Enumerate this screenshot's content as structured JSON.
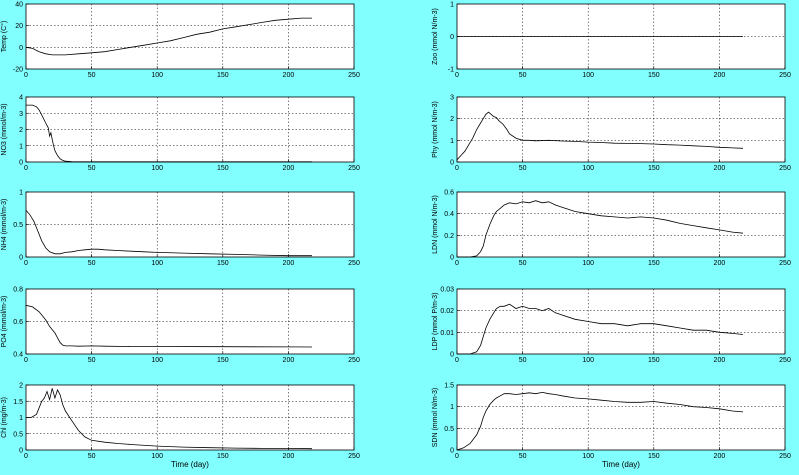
{
  "figure": {
    "background": "#80fffe",
    "axes_background": "#ffffff",
    "line_color": "#000000",
    "grid": "dotted"
  },
  "chart_data": [
    {
      "type": "line",
      "ylabel": "Temp (C°)",
      "xlabel": "",
      "xlim": [
        0,
        250
      ],
      "ylim": [
        -20,
        40
      ],
      "xticks": [
        0,
        50,
        100,
        150,
        200,
        250
      ],
      "yticks": [
        -20,
        0,
        20,
        40
      ],
      "grid": true,
      "series": [
        {
          "x": [
            0,
            5,
            10,
            15,
            20,
            30,
            40,
            50,
            60,
            70,
            80,
            90,
            100,
            110,
            120,
            130,
            140,
            150,
            160,
            170,
            180,
            190,
            200,
            210,
            218
          ],
          "y": [
            0,
            -1,
            -4,
            -6,
            -7,
            -7,
            -6,
            -5,
            -4,
            -2,
            0,
            2,
            4,
            6,
            9,
            12,
            14,
            17,
            19,
            21,
            23,
            25,
            26,
            27,
            27
          ]
        }
      ]
    },
    {
      "type": "line",
      "ylabel": "NO3 (mmol/m-3)",
      "xlabel": "",
      "xlim": [
        0,
        250
      ],
      "ylim": [
        0,
        4
      ],
      "xticks": [
        0,
        50,
        100,
        150,
        200,
        250
      ],
      "yticks": [
        0,
        1,
        2,
        3,
        4
      ],
      "grid": true,
      "series": [
        {
          "x": [
            0,
            5,
            8,
            10,
            12,
            15,
            17,
            18,
            19,
            20,
            21,
            22,
            24,
            26,
            28,
            30,
            35,
            40,
            60,
            100,
            150,
            200,
            218
          ],
          "y": [
            3.5,
            3.5,
            3.4,
            3.2,
            2.9,
            2.4,
            2.1,
            1.6,
            1.8,
            1.4,
            1.0,
            0.7,
            0.4,
            0.2,
            0.1,
            0.05,
            0.02,
            0.01,
            0.01,
            0.01,
            0.01,
            0.01,
            0.01
          ]
        }
      ]
    },
    {
      "type": "line",
      "ylabel": "NH4 (mmol/m-3)",
      "xlabel": "",
      "xlim": [
        0,
        250
      ],
      "ylim": [
        0,
        1
      ],
      "xticks": [
        0,
        50,
        100,
        150,
        200,
        250
      ],
      "yticks": [
        0,
        0.5,
        1
      ],
      "grid": true,
      "series": [
        {
          "x": [
            0,
            3,
            6,
            9,
            12,
            15,
            18,
            22,
            26,
            30,
            35,
            40,
            45,
            50,
            55,
            60,
            70,
            80,
            90,
            100,
            120,
            140,
            160,
            180,
            200,
            218
          ],
          "y": [
            0.72,
            0.65,
            0.55,
            0.4,
            0.25,
            0.14,
            0.08,
            0.05,
            0.05,
            0.07,
            0.08,
            0.1,
            0.11,
            0.12,
            0.12,
            0.11,
            0.1,
            0.09,
            0.08,
            0.07,
            0.06,
            0.05,
            0.04,
            0.03,
            0.02,
            0.02
          ]
        }
      ]
    },
    {
      "type": "line",
      "ylabel": "PO4 (mmol/m-3)",
      "xlabel": "",
      "xlim": [
        0,
        250
      ],
      "ylim": [
        0.4,
        0.8
      ],
      "xticks": [
        0,
        50,
        100,
        150,
        200,
        250
      ],
      "yticks": [
        0.4,
        0.6,
        0.8
      ],
      "grid": true,
      "series": [
        {
          "x": [
            0,
            5,
            10,
            15,
            18,
            20,
            22,
            24,
            26,
            28,
            30,
            35,
            40,
            50,
            60,
            80,
            100,
            150,
            200,
            218
          ],
          "y": [
            0.7,
            0.69,
            0.66,
            0.61,
            0.57,
            0.55,
            0.53,
            0.5,
            0.47,
            0.455,
            0.45,
            0.45,
            0.448,
            0.45,
            0.448,
            0.446,
            0.446,
            0.445,
            0.444,
            0.443
          ]
        }
      ]
    },
    {
      "type": "line",
      "ylabel": "Chl (mg/m-3)",
      "xlabel": "Time (day)",
      "xlim": [
        0,
        250
      ],
      "ylim": [
        0,
        2
      ],
      "xticks": [
        0,
        50,
        100,
        150,
        200,
        250
      ],
      "yticks": [
        0,
        0.5,
        1,
        1.5,
        2
      ],
      "grid": true,
      "series": [
        {
          "x": [
            0,
            4,
            8,
            10,
            12,
            14,
            16,
            18,
            20,
            22,
            24,
            26,
            28,
            30,
            35,
            40,
            45,
            50,
            60,
            70,
            80,
            100,
            120,
            140,
            160,
            180,
            200,
            218
          ],
          "y": [
            1.0,
            1.0,
            1.1,
            1.3,
            1.5,
            1.6,
            1.8,
            1.55,
            1.9,
            1.6,
            1.85,
            1.7,
            1.4,
            1.2,
            0.9,
            0.6,
            0.4,
            0.3,
            0.24,
            0.2,
            0.17,
            0.12,
            0.09,
            0.07,
            0.06,
            0.05,
            0.05,
            0.04
          ]
        }
      ]
    },
    {
      "type": "line",
      "ylabel": "Zoo (mmol N/m-3)",
      "xlabel": "",
      "xlim": [
        0,
        250
      ],
      "ylim": [
        -1,
        1
      ],
      "xticks": [
        0,
        50,
        100,
        150,
        200,
        250
      ],
      "yticks": [
        -1,
        0,
        1
      ],
      "grid": true,
      "series": [
        {
          "x": [
            0,
            218
          ],
          "y": [
            0,
            0
          ]
        }
      ]
    },
    {
      "type": "line",
      "ylabel": "Phy (mmol N/m-3)",
      "xlabel": "",
      "xlim": [
        0,
        250
      ],
      "ylim": [
        0,
        3
      ],
      "xticks": [
        0,
        50,
        100,
        150,
        200,
        250
      ],
      "yticks": [
        0,
        1,
        2,
        3
      ],
      "grid": true,
      "series": [
        {
          "x": [
            0,
            3,
            6,
            9,
            12,
            15,
            18,
            20,
            22,
            24,
            26,
            28,
            30,
            32,
            35,
            38,
            40,
            45,
            50,
            55,
            60,
            70,
            80,
            90,
            100,
            110,
            120,
            130,
            140,
            150,
            160,
            170,
            180,
            190,
            200,
            210,
            218
          ],
          "y": [
            0.1,
            0.3,
            0.5,
            0.8,
            1.1,
            1.5,
            1.8,
            2.0,
            2.2,
            2.3,
            2.2,
            2.1,
            2.05,
            1.9,
            1.75,
            1.5,
            1.3,
            1.1,
            1.0,
            1.0,
            0.98,
            1.0,
            0.97,
            0.95,
            0.92,
            0.9,
            0.87,
            0.86,
            0.85,
            0.83,
            0.8,
            0.78,
            0.75,
            0.72,
            0.68,
            0.65,
            0.63
          ]
        }
      ]
    },
    {
      "type": "line",
      "ylabel": "LDN (mmol N/m-3)",
      "xlabel": "",
      "xlim": [
        0,
        250
      ],
      "ylim": [
        0,
        0.6
      ],
      "xticks": [
        0,
        50,
        100,
        150,
        200,
        250
      ],
      "yticks": [
        0,
        0.2,
        0.4,
        0.6
      ],
      "grid": true,
      "series": [
        {
          "x": [
            0,
            10,
            15,
            18,
            20,
            22,
            25,
            28,
            30,
            33,
            36,
            40,
            45,
            50,
            55,
            60,
            65,
            70,
            75,
            80,
            90,
            100,
            110,
            120,
            130,
            140,
            150,
            160,
            170,
            180,
            190,
            200,
            210,
            218
          ],
          "y": [
            0.0,
            0.0,
            0.01,
            0.05,
            0.1,
            0.2,
            0.3,
            0.38,
            0.42,
            0.45,
            0.48,
            0.5,
            0.49,
            0.51,
            0.5,
            0.52,
            0.5,
            0.51,
            0.48,
            0.46,
            0.42,
            0.4,
            0.38,
            0.37,
            0.36,
            0.37,
            0.36,
            0.34,
            0.31,
            0.29,
            0.27,
            0.25,
            0.23,
            0.22
          ]
        }
      ]
    },
    {
      "type": "line",
      "ylabel": "LDP (mmol P/m-3)",
      "xlabel": "",
      "xlim": [
        0,
        250
      ],
      "ylim": [
        0,
        0.03
      ],
      "xticks": [
        0,
        50,
        100,
        150,
        200,
        250
      ],
      "yticks": [
        0,
        0.01,
        0.02,
        0.03
      ],
      "grid": true,
      "series": [
        {
          "x": [
            0,
            10,
            15,
            18,
            20,
            22,
            25,
            28,
            30,
            33,
            36,
            40,
            45,
            50,
            55,
            60,
            65,
            70,
            75,
            80,
            90,
            100,
            110,
            120,
            130,
            140,
            150,
            160,
            170,
            180,
            190,
            200,
            210,
            218
          ],
          "y": [
            0.0,
            0.0,
            0.001,
            0.004,
            0.008,
            0.012,
            0.016,
            0.019,
            0.021,
            0.022,
            0.022,
            0.023,
            0.021,
            0.022,
            0.021,
            0.021,
            0.02,
            0.021,
            0.019,
            0.018,
            0.016,
            0.015,
            0.014,
            0.014,
            0.013,
            0.014,
            0.014,
            0.013,
            0.012,
            0.011,
            0.011,
            0.01,
            0.0095,
            0.009
          ]
        }
      ]
    },
    {
      "type": "line",
      "ylabel": "SDN (mmol N/m-3)",
      "xlabel": "Time (day)",
      "xlim": [
        0,
        250
      ],
      "ylim": [
        0,
        1.5
      ],
      "xticks": [
        0,
        50,
        100,
        150,
        200,
        250
      ],
      "yticks": [
        0,
        0.5,
        1,
        1.5
      ],
      "grid": true,
      "series": [
        {
          "x": [
            0,
            5,
            10,
            15,
            18,
            20,
            22,
            25,
            28,
            30,
            33,
            36,
            40,
            45,
            50,
            55,
            60,
            65,
            70,
            75,
            80,
            90,
            100,
            110,
            120,
            130,
            140,
            150,
            160,
            170,
            180,
            190,
            200,
            210,
            218
          ],
          "y": [
            0.0,
            0.05,
            0.15,
            0.35,
            0.55,
            0.75,
            0.9,
            1.05,
            1.15,
            1.2,
            1.25,
            1.3,
            1.3,
            1.28,
            1.3,
            1.32,
            1.3,
            1.33,
            1.3,
            1.28,
            1.25,
            1.2,
            1.18,
            1.15,
            1.12,
            1.1,
            1.1,
            1.12,
            1.08,
            1.05,
            1.0,
            0.98,
            0.95,
            0.9,
            0.88
          ]
        }
      ]
    }
  ]
}
